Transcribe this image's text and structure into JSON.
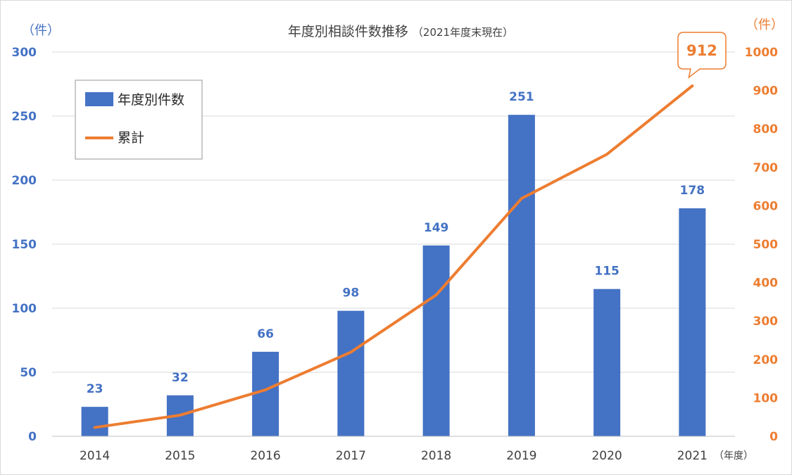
{
  "chart_data": {
    "type": "bar",
    "title": "年度別相談件数推移",
    "subtitle": "（2021年度末現在）",
    "categories": [
      "2014",
      "2015",
      "2016",
      "2017",
      "2018",
      "2019",
      "2020",
      "2021"
    ],
    "xunit": "（年度）",
    "series": [
      {
        "name": "年度別件数",
        "type": "bar",
        "axis": "left",
        "color": "#4472c4",
        "values": [
          23,
          32,
          66,
          98,
          149,
          251,
          115,
          178
        ]
      },
      {
        "name": "累計",
        "type": "line",
        "axis": "right",
        "color": "#ed7d31",
        "values": [
          23,
          55,
          121,
          219,
          368,
          619,
          734,
          912
        ]
      }
    ],
    "y_left": {
      "unit": "（件）",
      "range": [
        0,
        300
      ],
      "ticks": [
        "0",
        "50",
        "100",
        "150",
        "200",
        "250",
        "300"
      ]
    },
    "y_right": {
      "unit": "（件）",
      "range": [
        0,
        1000
      ],
      "ticks": [
        "0",
        "100",
        "200",
        "300",
        "400",
        "500",
        "600",
        "700",
        "800",
        "900",
        "1000"
      ]
    },
    "grid": true,
    "legend_position": "top-left",
    "callout": {
      "series": "累計",
      "category": "2021",
      "text": "912"
    }
  }
}
